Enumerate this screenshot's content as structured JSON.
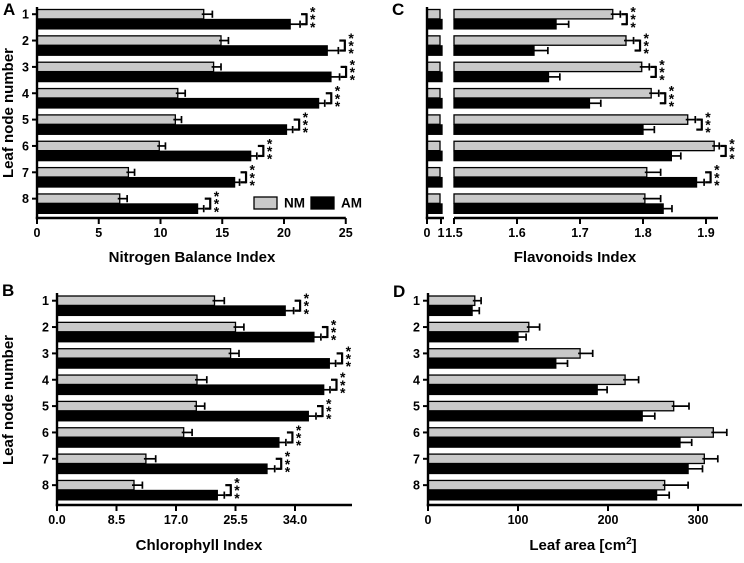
{
  "figure": {
    "background": "#ffffff",
    "ink_color": "#000000",
    "row_axis_label": "Leaf node number",
    "legend": {
      "position": "inside-panel-A-bottom-right",
      "items": [
        {
          "label": "NM",
          "color": "#c9c9c9",
          "swatch": "gray-box"
        },
        {
          "label": "AM",
          "color": "#000000",
          "swatch": "black-box"
        }
      ]
    }
  },
  "chart_data": [
    {
      "panel": "A",
      "type": "bar",
      "orientation": "horizontal",
      "xlabel": "Nitrogen Balance Index",
      "ylabel": "Leaf node number",
      "categories": [
        "1",
        "2",
        "3",
        "4",
        "5",
        "6",
        "7",
        "8"
      ],
      "xlim": [
        0,
        25
      ],
      "xticks": [
        {
          "label": "0",
          "value": 0
        },
        {
          "label": "5",
          "value": 5
        },
        {
          "label": "10",
          "value": 10
        },
        {
          "label": "15",
          "value": 15
        },
        {
          "label": "20",
          "value": 20
        },
        {
          "label": "25",
          "value": 25
        }
      ],
      "series": [
        {
          "name": "NM",
          "color": "#c9c9c9",
          "values": [
            13.5,
            14.9,
            14.3,
            11.4,
            11.2,
            9.9,
            7.4,
            6.7
          ],
          "errors": [
            0.7,
            0.6,
            0.6,
            0.6,
            0.5,
            0.5,
            0.5,
            0.6
          ]
        },
        {
          "name": "AM",
          "color": "#000000",
          "values": [
            20.5,
            23.5,
            23.8,
            22.8,
            20.2,
            17.3,
            16.0,
            13.0
          ],
          "errors": [
            0.8,
            0.9,
            0.7,
            0.5,
            0.5,
            0.5,
            0.4,
            0.5
          ]
        }
      ],
      "significance": [
        "***",
        "***",
        "***",
        "***",
        "***",
        "***",
        "***",
        "***"
      ],
      "show_row_labels": true,
      "show_legend": true,
      "grid": false
    },
    {
      "panel": "B",
      "type": "bar",
      "orientation": "horizontal",
      "xlabel": "Chlorophyll Index",
      "ylabel": "Leaf node number",
      "categories": [
        "1",
        "2",
        "3",
        "4",
        "5",
        "6",
        "7",
        "8"
      ],
      "xlim": [
        0,
        42.5
      ],
      "xticks": [
        {
          "label": "0.0",
          "value": 0
        },
        {
          "label": "8.5",
          "value": 8.5
        },
        {
          "label": "17.0",
          "value": 17
        },
        {
          "label": "25.5",
          "value": 25.5
        },
        {
          "label": "34.0",
          "value": 34
        }
      ],
      "series": [
        {
          "name": "NM",
          "color": "#c9c9c9",
          "values": [
            22.5,
            25.5,
            24.8,
            20.0,
            19.9,
            18.1,
            12.7,
            11.0
          ],
          "errors": [
            1.4,
            1.2,
            1.2,
            1.4,
            1.2,
            1.2,
            1.4,
            1.2
          ]
        },
        {
          "name": "AM",
          "color": "#000000",
          "values": [
            32.6,
            36.7,
            38.9,
            38.1,
            35.9,
            31.7,
            30.0,
            22.9
          ],
          "errors": [
            1.2,
            1.0,
            0.9,
            0.9,
            1.1,
            1.0,
            1.1,
            1.0
          ]
        }
      ],
      "significance": [
        "***",
        "***",
        "***",
        "***",
        "***",
        "***",
        "***",
        "***"
      ],
      "show_row_labels": true,
      "show_legend": false,
      "grid": false
    },
    {
      "panel": "C",
      "type": "bar",
      "orientation": "horizontal",
      "xlabel": "Flavonoids Index",
      "ylabel": "",
      "categories": [
        "1",
        "2",
        "3",
        "4",
        "5",
        "6",
        "7",
        "8"
      ],
      "xlim": [
        0,
        1.95
      ],
      "axis_break": {
        "pre_ticks": [
          {
            "label": "0",
            "value": 0
          },
          {
            "label": "1",
            "value": 1
          }
        ],
        "resume_value": 1.5
      },
      "xticks": [
        {
          "label": "1.5",
          "value": 1.5
        },
        {
          "label": "1.6",
          "value": 1.6
        },
        {
          "label": "1.7",
          "value": 1.7
        },
        {
          "label": "1.8",
          "value": 1.8
        },
        {
          "label": "1.9",
          "value": 1.9
        }
      ],
      "series": [
        {
          "name": "NM",
          "color": "#c9c9c9",
          "values": [
            1.752,
            1.773,
            1.798,
            1.813,
            1.871,
            1.913,
            1.806,
            1.803
          ],
          "errors": [
            0.012,
            0.012,
            0.012,
            0.012,
            0.012,
            0.008,
            0.022,
            0.025
          ]
        },
        {
          "name": "AM",
          "color": "#000000",
          "values": [
            1.662,
            1.627,
            1.65,
            1.715,
            1.8,
            1.845,
            1.885,
            1.832
          ],
          "errors": [
            0.02,
            0.022,
            0.018,
            0.018,
            0.018,
            0.015,
            0.012,
            0.014
          ]
        }
      ],
      "significance": [
        "***",
        "***",
        "***",
        "***",
        "***",
        "***",
        "***",
        ""
      ],
      "show_row_labels": false,
      "show_legend": false,
      "grid": false
    },
    {
      "panel": "D",
      "type": "bar",
      "orientation": "horizontal",
      "xlabel": "Leaf area [cm²]",
      "ylabel": "",
      "categories": [
        "1",
        "2",
        "3",
        "4",
        "5",
        "6",
        "7",
        "8"
      ],
      "xlim": [
        0,
        350
      ],
      "xticks": [
        {
          "label": "0",
          "value": 0
        },
        {
          "label": "100",
          "value": 100
        },
        {
          "label": "200",
          "value": 200
        },
        {
          "label": "300",
          "value": 300
        }
      ],
      "series": [
        {
          "name": "NM",
          "color": "#c9c9c9",
          "values": [
            52,
            112,
            169,
            219,
            273,
            317,
            307,
            263
          ],
          "errors": [
            7,
            12,
            14,
            15,
            17,
            15,
            15,
            26
          ]
        },
        {
          "name": "AM",
          "color": "#000000",
          "values": [
            49,
            100,
            142,
            188,
            238,
            280,
            289,
            254
          ],
          "errors": [
            8,
            9,
            13,
            11,
            14,
            13,
            16,
            14
          ]
        }
      ],
      "significance": [
        "",
        "",
        "",
        "",
        "",
        "",
        "",
        ""
      ],
      "show_row_labels": true,
      "show_legend": false,
      "grid": false
    }
  ]
}
